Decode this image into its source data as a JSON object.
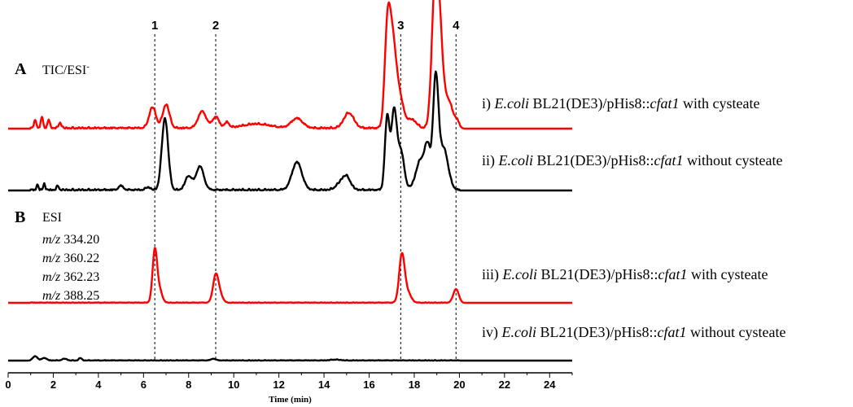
{
  "chart_data": {
    "type": "line",
    "xlabel": "Time (min)",
    "xlim": [
      0,
      25
    ],
    "xticks": [
      0,
      2,
      4,
      6,
      8,
      10,
      12,
      14,
      16,
      18,
      20,
      22,
      24
    ],
    "colors": {
      "red": "#ff0000",
      "black": "#000000"
    },
    "peak_markers": [
      {
        "label": "1",
        "x": 6.5
      },
      {
        "label": "2",
        "x": 9.2
      },
      {
        "label": "3",
        "x": 17.4
      },
      {
        "label": "4",
        "x": 19.85
      }
    ],
    "panels": [
      {
        "letter": "A",
        "label": "TIC/ESI",
        "label_sup": "-",
        "mz_lines": [],
        "traces": [
          {
            "prefix": "i) ",
            "italic": "E.coli",
            "mid": " BL21(DE3)/pHis8::",
            "italic2": "cfat1",
            "suffix": " with cysteate",
            "color": "#ff0000",
            "relative_peaks": [
              [
                1.2,
                0.06,
                0.05
              ],
              [
                1.5,
                0.08,
                0.05
              ],
              [
                1.8,
                0.06,
                0.05
              ],
              [
                2.3,
                0.04,
                0.06
              ],
              [
                6.4,
                0.15,
                0.15
              ],
              [
                7.0,
                0.17,
                0.15
              ],
              [
                8.6,
                0.12,
                0.18
              ],
              [
                9.2,
                0.08,
                0.15
              ],
              [
                9.7,
                0.04,
                0.1
              ],
              [
                11.0,
                0.03,
                0.6
              ],
              [
                12.8,
                0.07,
                0.25
              ],
              [
                15.1,
                0.11,
                0.22
              ],
              [
                16.8,
                0.55,
                0.12
              ],
              [
                17.0,
                0.58,
                0.16
              ],
              [
                17.3,
                0.25,
                0.2
              ],
              [
                17.9,
                0.06,
                0.2
              ],
              [
                18.9,
                0.82,
                0.14
              ],
              [
                19.1,
                0.7,
                0.15
              ],
              [
                19.5,
                0.2,
                0.2
              ],
              [
                19.9,
                0.04,
                0.1
              ]
            ]
          },
          {
            "prefix": "ii) ",
            "italic": "E.coli",
            "mid": " BL21(DE3)/pHis8::",
            "italic2": "cfat1",
            "suffix": " without cysteate",
            "color": "#000000",
            "relative_peaks": [
              [
                1.3,
                0.04,
                0.04
              ],
              [
                1.6,
                0.05,
                0.04
              ],
              [
                2.2,
                0.03,
                0.05
              ],
              [
                5.0,
                0.03,
                0.1
              ],
              [
                6.2,
                0.02,
                0.1
              ],
              [
                6.95,
                0.52,
                0.14
              ],
              [
                8.0,
                0.1,
                0.15
              ],
              [
                8.5,
                0.17,
                0.17
              ],
              [
                12.8,
                0.2,
                0.22
              ],
              [
                14.7,
                0.04,
                0.2
              ],
              [
                15.0,
                0.09,
                0.18
              ],
              [
                16.8,
                0.52,
                0.1
              ],
              [
                17.1,
                0.55,
                0.12
              ],
              [
                17.4,
                0.28,
                0.15
              ],
              [
                18.3,
                0.22,
                0.22
              ],
              [
                18.6,
                0.25,
                0.12
              ],
              [
                18.95,
                0.78,
                0.12
              ],
              [
                19.3,
                0.3,
                0.2
              ]
            ]
          }
        ]
      },
      {
        "letter": "B",
        "label": "ESI",
        "label_sup": "",
        "mz_lines": [
          {
            "italic": "m/z",
            "value": " 334.20"
          },
          {
            "italic": "m/z",
            "value": " 360.22"
          },
          {
            "italic": "m/z",
            "value": " 362.23"
          },
          {
            "italic": "m/z",
            "value": " 388.25"
          }
        ],
        "traces": [
          {
            "prefix": "iii) ",
            "italic": "E.coli",
            "mid": " BL21(DE3)/pHis8::",
            "italic2": "cfat1",
            "suffix": " with cysteate",
            "color": "#ff0000",
            "relative_peaks": [
              [
                6.5,
                0.6,
                0.1
              ],
              [
                6.7,
                0.15,
                0.12
              ],
              [
                9.2,
                0.32,
                0.12
              ],
              [
                9.4,
                0.08,
                0.12
              ],
              [
                17.45,
                0.55,
                0.12
              ],
              [
                17.7,
                0.12,
                0.15
              ],
              [
                19.85,
                0.16,
                0.12
              ]
            ]
          },
          {
            "prefix": "iv) ",
            "italic": "E.coli",
            "mid": " BL21(DE3)/pHis8::",
            "italic2": "cfat1",
            "suffix": " without cysteate",
            "color": "#000000",
            "relative_peaks": [
              [
                1.2,
                0.05,
                0.1
              ],
              [
                1.6,
                0.03,
                0.1
              ],
              [
                2.5,
                0.02,
                0.1
              ],
              [
                3.2,
                0.03,
                0.06
              ],
              [
                9.1,
                0.02,
                0.1
              ],
              [
                14.5,
                0.01,
                0.2
              ]
            ]
          }
        ]
      }
    ]
  }
}
